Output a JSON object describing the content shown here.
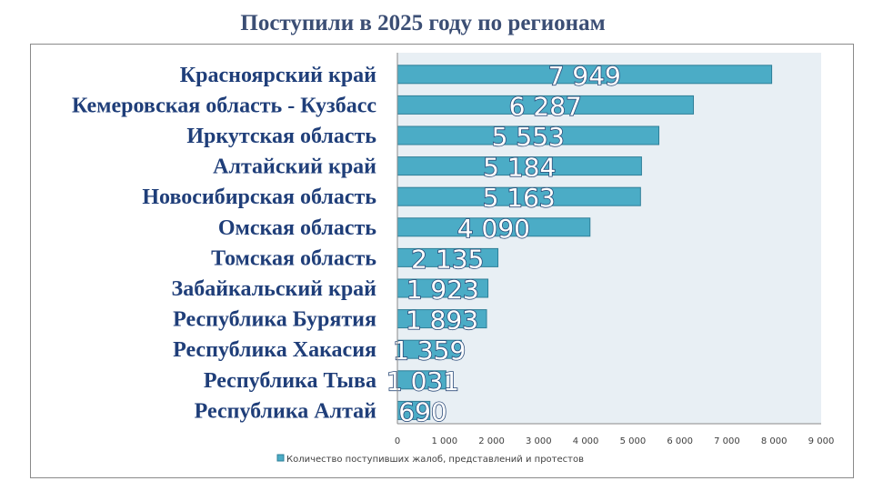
{
  "chart_data": {
    "type": "bar",
    "orientation": "horizontal",
    "title": "Поступили в 2025 году по регионам",
    "categories": [
      "Красноярский край",
      "Кемеровская область - Кузбасс",
      "Иркутская область",
      "Алтайский край",
      "Новосибирская область",
      "Омская область",
      "Томская область",
      "Забайкальский край",
      "Республика Бурятия",
      "Республика Хакасия",
      "Республика Тыва",
      "Республика Алтай"
    ],
    "values": [
      7949,
      6287,
      5553,
      5184,
      5163,
      4090,
      2135,
      1923,
      1893,
      1359,
      1031,
      690
    ],
    "value_labels": [
      "7 949",
      "6 287",
      "5 553",
      "5 184",
      "5 163",
      "4 090",
      "2 135",
      "1 923",
      "1 893",
      "1 359",
      "1 031",
      "690"
    ],
    "xlim": [
      0,
      9000
    ],
    "x_ticks": [
      0,
      1000,
      2000,
      3000,
      4000,
      5000,
      6000,
      7000,
      8000,
      9000
    ],
    "x_tick_labels": [
      "0",
      "1 000",
      "2 000",
      "3 000",
      "4 000",
      "5 000",
      "6 000",
      "7 000",
      "8 000",
      "9 000"
    ],
    "legend": {
      "label": "Количество поступивших жалоб, представлений  и протестов",
      "placement": "bottom"
    },
    "colors": {
      "bar": "#4bacc6",
      "bar_border": "#2f7f98",
      "plot_bg": "#e8eff4",
      "title": "#3b4e74",
      "category": "#1f3e79"
    }
  }
}
